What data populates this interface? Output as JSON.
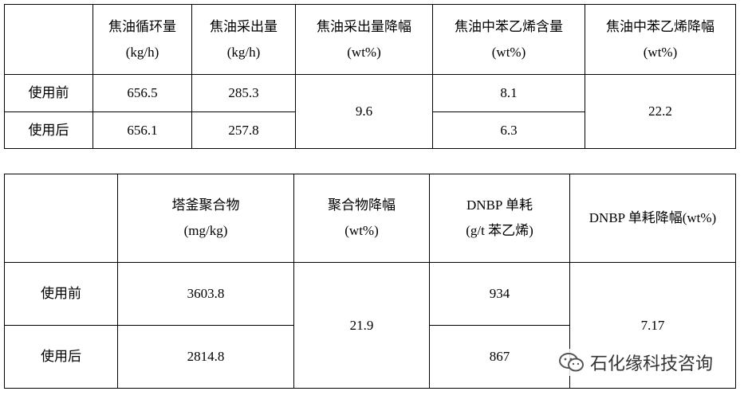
{
  "table1": {
    "header": [
      [
        "焦油循环量",
        "(kg/h)"
      ],
      [
        "焦油采出量",
        "(kg/h)"
      ],
      [
        "焦油采出量降幅",
        "(wt%)"
      ],
      [
        "焦油中苯乙烯含量",
        "(wt%)"
      ],
      [
        "焦油中苯乙烯降幅",
        "(wt%)"
      ]
    ],
    "rows": [
      [
        "使用前",
        "656.5",
        "285.3",
        "9.6",
        "8.1",
        "22.2"
      ],
      [
        "使用后",
        "656.1",
        "257.8",
        "6.3"
      ]
    ]
  },
  "table2": {
    "header": [
      [
        "塔釜聚合物",
        "(mg/kg)"
      ],
      [
        "聚合物降幅",
        "(wt%)"
      ],
      [
        "DNBP 单耗",
        "(g/t 苯乙烯)"
      ],
      [
        "DNBP 单耗降幅(wt%)"
      ]
    ],
    "rows": [
      [
        "使用前",
        "3603.8",
        "21.9",
        "934",
        "7.17"
      ],
      [
        "使用后",
        "2814.8",
        "867"
      ]
    ]
  },
  "watermark": "石化缘科技咨询"
}
